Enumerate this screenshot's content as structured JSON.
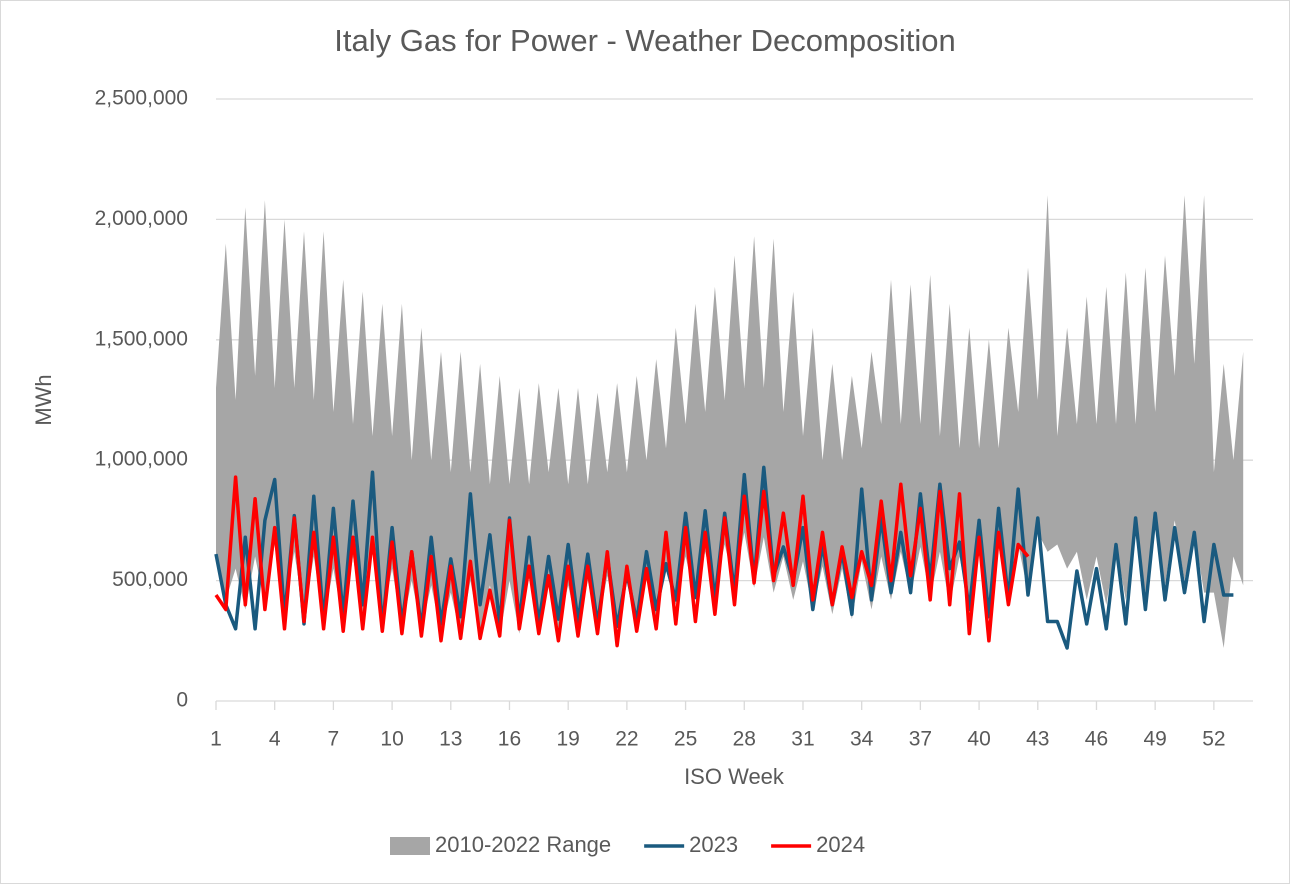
{
  "chart_data": {
    "type": "line",
    "title": "Italy Gas for Power - Weather Decomposition",
    "x_label": "ISO Week",
    "y_label": "MWh",
    "xlim": [
      1,
      54
    ],
    "xticks": [
      1,
      4,
      7,
      10,
      13,
      16,
      19,
      22,
      25,
      28,
      31,
      34,
      37,
      40,
      43,
      46,
      49,
      52
    ],
    "ylim": [
      0,
      2500000
    ],
    "yticks": [
      0,
      {
        "value": 500000,
        "label": "500,000"
      },
      {
        "value": 1000000,
        "label": "1,000,000"
      },
      {
        "value": 1500000,
        "label": "1,500,000"
      },
      {
        "value": 2000000,
        "label": "2,000,000"
      },
      {
        "value": 2500000,
        "label": "2,500,000"
      }
    ],
    "grid": true,
    "legend": "bottom",
    "x": [
      1,
      1.5,
      2,
      2.5,
      3,
      3.5,
      4,
      4.5,
      5,
      5.5,
      6,
      6.5,
      7,
      7.5,
      8,
      8.5,
      9,
      9.5,
      10,
      10.5,
      11,
      11.5,
      12,
      12.5,
      13,
      13.5,
      14,
      14.5,
      15,
      15.5,
      16,
      16.5,
      17,
      17.5,
      18,
      18.5,
      19,
      19.5,
      20,
      20.5,
      21,
      21.5,
      22,
      22.5,
      23,
      23.5,
      24,
      24.5,
      25,
      25.5,
      26,
      26.5,
      27,
      27.5,
      28,
      28.5,
      29,
      29.5,
      30,
      30.5,
      31,
      31.5,
      32,
      32.5,
      33,
      33.5,
      34,
      34.5,
      35,
      35.5,
      36,
      36.5,
      37,
      37.5,
      38,
      38.5,
      39,
      39.5,
      40,
      40.5,
      41,
      41.5,
      42,
      42.5,
      43,
      43.5,
      44,
      44.5,
      45,
      45.5,
      46,
      46.5,
      47,
      47.5,
      48,
      48.5,
      49,
      49.5,
      50,
      50.5,
      51,
      51.5,
      52,
      52.5,
      53,
      53.5
    ],
    "series": [
      {
        "name": "2010-2022 Range",
        "type": "range",
        "color": "#a6a6a6",
        "high": [
          1300000,
          1900000,
          1250000,
          2050000,
          1350000,
          2080000,
          1300000,
          2000000,
          1300000,
          1950000,
          1250000,
          1950000,
          1200000,
          1750000,
          1150000,
          1700000,
          1100000,
          1650000,
          1100000,
          1650000,
          1000000,
          1550000,
          1000000,
          1450000,
          950000,
          1450000,
          950000,
          1400000,
          900000,
          1350000,
          900000,
          1300000,
          900000,
          1320000,
          950000,
          1300000,
          900000,
          1300000,
          900000,
          1280000,
          950000,
          1320000,
          950000,
          1350000,
          1000000,
          1420000,
          1050000,
          1550000,
          1150000,
          1650000,
          1200000,
          1720000,
          1250000,
          1850000,
          1300000,
          1930000,
          1300000,
          1920000,
          1200000,
          1700000,
          1100000,
          1550000,
          1000000,
          1400000,
          1000000,
          1350000,
          1050000,
          1450000,
          1150000,
          1750000,
          1150000,
          1730000,
          1150000,
          1770000,
          1100000,
          1650000,
          1050000,
          1550000,
          1050000,
          1500000,
          1050000,
          1550000,
          1200000,
          1800000,
          1250000,
          2100000,
          1100000,
          1550000,
          1150000,
          1680000,
          1150000,
          1720000,
          1150000,
          1780000,
          1150000,
          1800000,
          1200000,
          1850000,
          1350000,
          2100000,
          1400000,
          2100000,
          950000,
          1400000,
          1000000,
          1450000
        ],
        "low": [
          600000,
          420000,
          550000,
          380000,
          600000,
          400000,
          650000,
          380000,
          620000,
          350000,
          600000,
          330000,
          550000,
          320000,
          600000,
          330000,
          620000,
          340000,
          550000,
          300000,
          500000,
          300000,
          480000,
          280000,
          450000,
          270000,
          500000,
          280000,
          480000,
          270000,
          500000,
          280000,
          520000,
          300000,
          500000,
          300000,
          480000,
          290000,
          500000,
          300000,
          520000,
          310000,
          500000,
          300000,
          550000,
          320000,
          580000,
          400000,
          600000,
          420000,
          620000,
          450000,
          650000,
          480000,
          700000,
          470000,
          680000,
          450000,
          600000,
          420000,
          580000,
          380000,
          560000,
          360000,
          550000,
          340000,
          580000,
          380000,
          600000,
          420000,
          620000,
          440000,
          640000,
          430000,
          620000,
          400000,
          600000,
          380000,
          620000,
          400000,
          640000,
          420000,
          650000,
          450000,
          700000,
          620000,
          650000,
          550000,
          620000,
          420000,
          600000,
          400000,
          650000,
          420000,
          700000,
          450000,
          720000,
          480000,
          750000,
          500000,
          700000,
          450000,
          450000,
          220000,
          600000,
          480000
        ]
      },
      {
        "name": "2023",
        "color": "#1a5a7f",
        "values": [
          610000,
          400000,
          300000,
          680000,
          300000,
          750000,
          920000,
          350000,
          770000,
          320000,
          850000,
          330000,
          800000,
          350000,
          830000,
          400000,
          950000,
          300000,
          720000,
          320000,
          620000,
          300000,
          680000,
          320000,
          590000,
          350000,
          860000,
          400000,
          690000,
          320000,
          760000,
          330000,
          680000,
          320000,
          600000,
          340000,
          650000,
          330000,
          610000,
          320000,
          600000,
          310000,
          530000,
          330000,
          620000,
          380000,
          570000,
          420000,
          780000,
          430000,
          790000,
          420000,
          780000,
          450000,
          940000,
          500000,
          970000,
          520000,
          640000,
          500000,
          720000,
          380000,
          650000,
          400000,
          620000,
          360000,
          880000,
          420000,
          760000,
          450000,
          700000,
          450000,
          860000,
          500000,
          900000,
          550000,
          660000,
          380000,
          750000,
          350000,
          800000,
          420000,
          880000,
          440000,
          760000,
          330000,
          330000,
          220000,
          540000,
          320000,
          550000,
          300000,
          650000,
          320000,
          760000,
          380000,
          780000,
          420000,
          720000,
          450000,
          700000,
          330000,
          650000,
          440000,
          440000,
          null
        ]
      },
      {
        "name": "2024",
        "color": "#ff0000",
        "values": [
          440000,
          380000,
          930000,
          400000,
          840000,
          380000,
          720000,
          300000,
          760000,
          330000,
          700000,
          300000,
          680000,
          290000,
          680000,
          300000,
          680000,
          290000,
          660000,
          280000,
          620000,
          270000,
          600000,
          250000,
          560000,
          260000,
          580000,
          260000,
          460000,
          270000,
          750000,
          300000,
          560000,
          280000,
          520000,
          250000,
          560000,
          270000,
          560000,
          280000,
          620000,
          230000,
          560000,
          290000,
          550000,
          300000,
          700000,
          320000,
          720000,
          330000,
          700000,
          360000,
          760000,
          400000,
          850000,
          490000,
          870000,
          500000,
          780000,
          480000,
          850000,
          420000,
          700000,
          400000,
          640000,
          430000,
          620000,
          480000,
          830000,
          500000,
          900000,
          520000,
          800000,
          420000,
          870000,
          400000,
          860000,
          280000,
          680000,
          250000,
          700000,
          400000,
          650000,
          600000,
          null,
          null,
          null,
          null,
          null,
          null,
          null,
          null,
          null,
          null,
          null,
          null,
          null,
          null,
          null,
          null,
          null,
          null,
          null,
          null,
          null,
          null
        ]
      }
    ]
  }
}
